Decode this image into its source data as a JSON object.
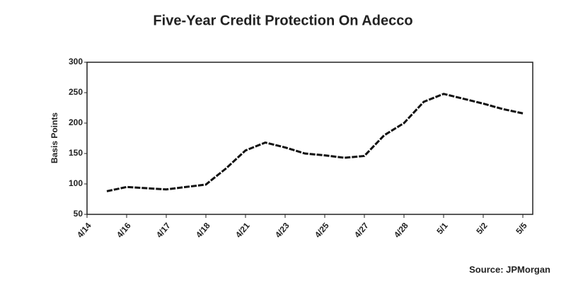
{
  "chart_data": {
    "type": "line",
    "title": "Five-Year Credit Protection On Adecco",
    "y_label": "Basis Points",
    "source": "Source: JPMorgan",
    "categories": [
      "4/14",
      null,
      "4/16",
      null,
      "4/17",
      null,
      "4/18",
      null,
      "4/21",
      null,
      "4/23",
      null,
      "4/25",
      null,
      "4/27",
      null,
      "4/28",
      null,
      "5/1",
      null,
      "5/2",
      null,
      "5/5"
    ],
    "values": [
      null,
      88,
      95,
      93,
      91,
      95,
      99,
      125,
      155,
      168,
      160,
      150,
      147,
      143,
      146,
      180,
      200,
      235,
      248,
      240,
      232,
      223,
      216
    ],
    "color": "#111111",
    "ylim": [
      50,
      300
    ],
    "yticks": [
      50,
      100,
      150,
      200,
      250,
      300
    ],
    "grid": false
  }
}
